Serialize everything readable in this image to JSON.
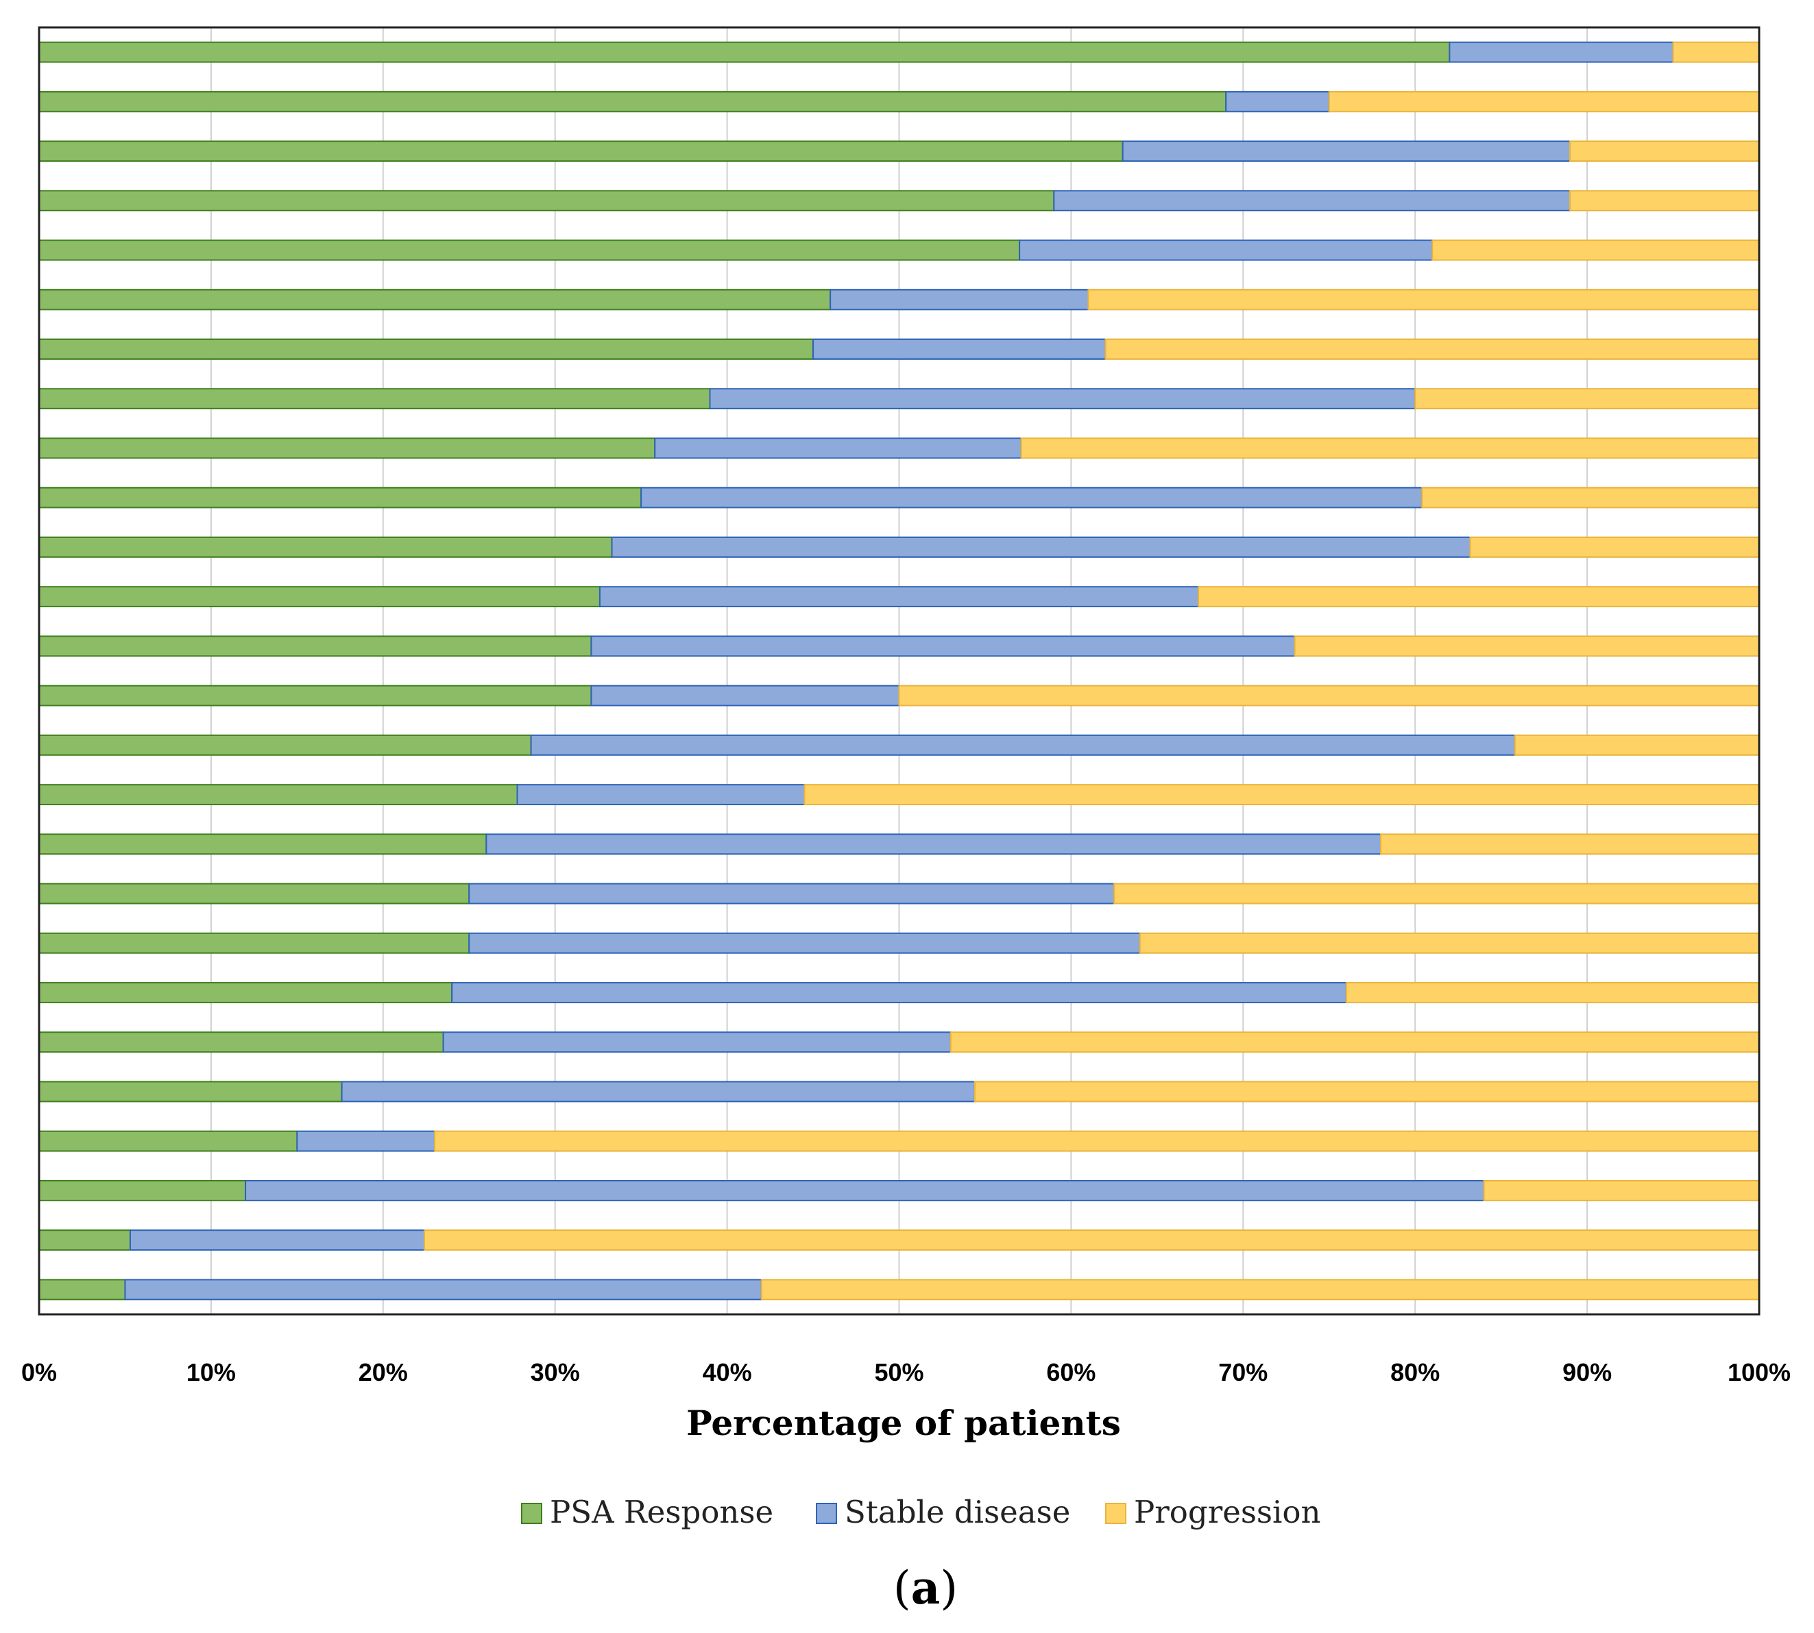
{
  "colors": {
    "psa_fill": "#8cbd66",
    "psa_stroke": "#3f7f1e",
    "stable_fill": "#8eaadb",
    "stable_stroke": "#2e63b5",
    "prog_fill": "#ffd266",
    "prog_stroke": "#e8b43c",
    "grid": "#d0d0d0",
    "frame": "#222222"
  },
  "chart_data": {
    "type": "bar",
    "orientation": "horizontal",
    "stacked": "percent",
    "xlabel": "Percentage of patients",
    "xlim": [
      0,
      100
    ],
    "x_ticks": [
      0,
      10,
      20,
      30,
      40,
      50,
      60,
      70,
      80,
      90,
      100
    ],
    "x_tick_labels": [
      "0%",
      "10%",
      "20%",
      "30%",
      "40%",
      "50%",
      "60%",
      "70%",
      "80%",
      "90%",
      "100%"
    ],
    "grid": true,
    "legend_position": "bottom-center",
    "caption_prefix": "(",
    "caption_letter": "a",
    "caption_suffix": ")",
    "series": [
      {
        "name": "PSA Response",
        "values": [
          82,
          69,
          63,
          59,
          57,
          46,
          45,
          39,
          35.8,
          35,
          33.3,
          32.6,
          32.1,
          32.1,
          28.6,
          27.8,
          26,
          25,
          25,
          24,
          23.5,
          17.6,
          15,
          12,
          5.3,
          5
        ]
      },
      {
        "name": "Stable disease",
        "values": [
          13,
          6,
          26,
          30,
          24,
          15,
          17,
          41,
          21.3,
          45.4,
          49.9,
          34.8,
          40.9,
          17.9,
          57.2,
          16.7,
          52,
          37.5,
          39,
          52,
          29.5,
          36.8,
          8,
          72,
          17.1,
          37
        ]
      },
      {
        "name": "Progression",
        "values": [
          5,
          25,
          11,
          11,
          19,
          39,
          38,
          20,
          42.9,
          19.6,
          16.8,
          32.6,
          27,
          50,
          14.2,
          55.5,
          22,
          37.5,
          36,
          24,
          47,
          45.6,
          77,
          16,
          77.6,
          58
        ]
      }
    ]
  }
}
